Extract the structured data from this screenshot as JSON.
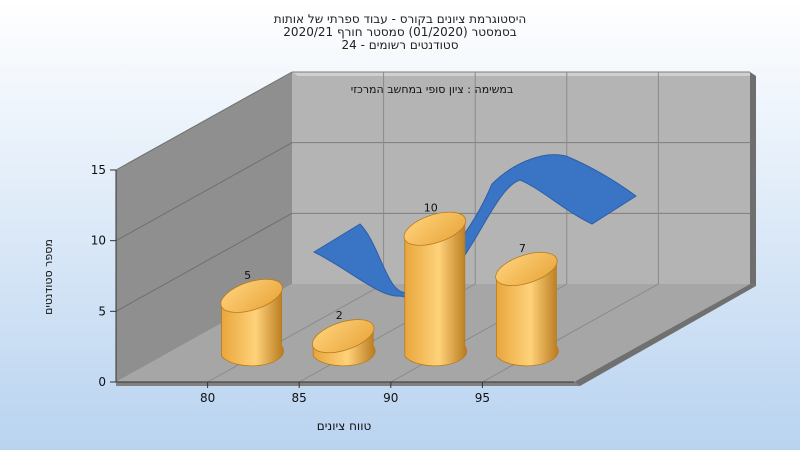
{
  "chart_data": {
    "type": "bar",
    "title_lines": [
      "היסטוגרמת ציונים בקורס - עבוד ספרתי של אותות",
      "בסמסטר  (01/2020)  סמסטר חורף 2020/21",
      "סטודנטים רשומים - 24"
    ],
    "subtitle": "במשימה : ציון סופי במחשב המרכזי",
    "xlabel": "טווח ציונים",
    "ylabel": "מספר סטודנטים",
    "ylim": [
      0,
      15
    ],
    "y_ticks": [
      "0",
      "5",
      "10",
      "15"
    ],
    "x_ticks": [
      "80",
      "85",
      "90",
      "95"
    ],
    "categories": [
      "80",
      "85",
      "90",
      "95"
    ],
    "values": [
      5,
      2,
      10,
      7
    ],
    "data_labels": [
      "5",
      "2",
      "10",
      "7"
    ],
    "grid": true,
    "legend": "none",
    "colors": {
      "background_top": "#ffffff",
      "background_bottom": "#b9d3f0",
      "bar_light": "#ffd27a",
      "bar_mid": "#e8a63c",
      "bar_dark": "#b97a1e",
      "ribbon": "#3a74c4",
      "back_wall": "#b4b4b4",
      "side_wall": "#8f8f8f",
      "floor": "#a6a6a6"
    }
  }
}
